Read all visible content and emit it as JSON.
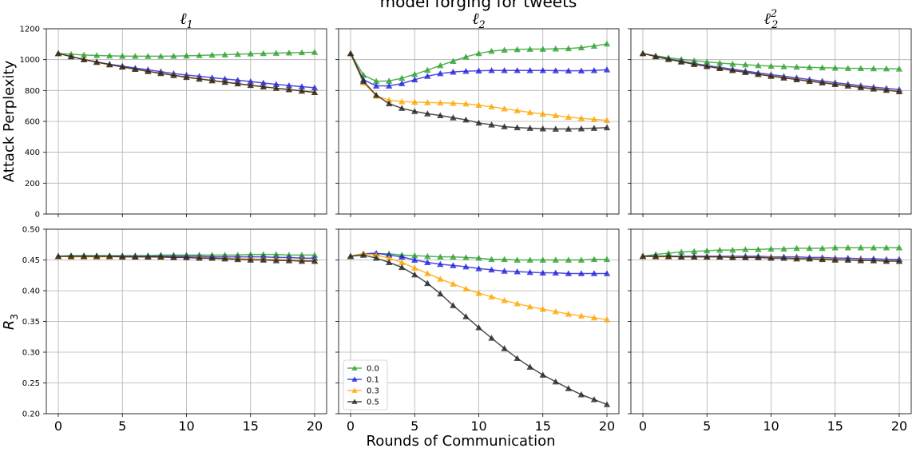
{
  "suptitle": "model forging for tweets",
  "xlabel": "Rounds of Communication",
  "ylabel_top": "Attack Perplexity",
  "ylabel_bottom": "R",
  "ylabel_bottom_sub": "3",
  "chart_data": [
    {
      "type": "line",
      "panel": "top-left",
      "title": "ℓ",
      "title_sub": "1",
      "title_sup": "",
      "xlim": [
        0,
        20
      ],
      "ylim": [
        0,
        1200
      ],
      "xticks": [
        0,
        5,
        10,
        15,
        20
      ],
      "yticks": [
        0,
        200,
        400,
        600,
        800,
        1000,
        1200
      ],
      "grid": true,
      "x": [
        0,
        1,
        2,
        3,
        4,
        5,
        6,
        7,
        8,
        9,
        10,
        11,
        12,
        13,
        14,
        15,
        16,
        17,
        18,
        19,
        20
      ],
      "series": [
        {
          "name": "0.0",
          "color": "#2ca02c",
          "values": [
            1040,
            1035,
            1030,
            1027,
            1025,
            1023,
            1022,
            1022,
            1022,
            1023,
            1025,
            1027,
            1030,
            1032,
            1035,
            1038,
            1040,
            1042,
            1044,
            1046,
            1048
          ]
        },
        {
          "name": "0.1",
          "color": "#1f1fdc",
          "values": [
            1040,
            1020,
            1000,
            985,
            970,
            958,
            945,
            935,
            922,
            910,
            900,
            892,
            883,
            875,
            867,
            858,
            849,
            840,
            832,
            825,
            818
          ]
        },
        {
          "name": "0.3",
          "color": "#ffa500",
          "values": [
            1040,
            1020,
            1000,
            982,
            967,
            952,
            938,
            925,
            912,
            900,
            888,
            877,
            866,
            855,
            845,
            835,
            825,
            815,
            806,
            797,
            788
          ]
        },
        {
          "name": "0.5",
          "color": "#222222",
          "values": [
            1040,
            1020,
            1001,
            984,
            968,
            953,
            938,
            924,
            911,
            898,
            886,
            875,
            864,
            854,
            844,
            834,
            824,
            815,
            806,
            797,
            788
          ]
        }
      ]
    },
    {
      "type": "line",
      "panel": "top-center",
      "title": "ℓ",
      "title_sub": "2",
      "title_sup": "",
      "xlim": [
        0,
        20
      ],
      "ylim": [
        0,
        1200
      ],
      "xticks": [
        0,
        5,
        10,
        15,
        20
      ],
      "yticks": [
        0,
        200,
        400,
        600,
        800,
        1000,
        1200
      ],
      "grid": true,
      "x": [
        0,
        1,
        2,
        3,
        4,
        5,
        6,
        7,
        8,
        9,
        10,
        11,
        12,
        13,
        14,
        15,
        16,
        17,
        18,
        19,
        20
      ],
      "series": [
        {
          "name": "0.0",
          "color": "#2ca02c",
          "values": [
            1040,
            900,
            860,
            862,
            880,
            905,
            932,
            962,
            990,
            1018,
            1040,
            1055,
            1062,
            1066,
            1068,
            1068,
            1070,
            1072,
            1078,
            1088,
            1102
          ]
        },
        {
          "name": "0.1",
          "color": "#1f1fdc",
          "values": [
            1040,
            870,
            830,
            830,
            845,
            870,
            893,
            910,
            920,
            925,
            928,
            930,
            930,
            930,
            930,
            930,
            929,
            928,
            928,
            930,
            935
          ]
        },
        {
          "name": "0.3",
          "color": "#ffa500",
          "values": [
            1040,
            850,
            765,
            738,
            728,
            725,
            722,
            720,
            718,
            714,
            705,
            695,
            682,
            670,
            658,
            648,
            638,
            628,
            620,
            613,
            607
          ]
        },
        {
          "name": "0.5",
          "color": "#222222",
          "values": [
            1040,
            860,
            770,
            715,
            685,
            665,
            650,
            638,
            624,
            610,
            590,
            578,
            566,
            560,
            556,
            553,
            551,
            551,
            553,
            556,
            560
          ]
        }
      ]
    },
    {
      "type": "line",
      "panel": "top-right",
      "title": "ℓ",
      "title_sub": "2",
      "title_sup": "2",
      "xlim": [
        0,
        20
      ],
      "ylim": [
        0,
        1200
      ],
      "xticks": [
        0,
        5,
        10,
        15,
        20
      ],
      "yticks": [
        0,
        200,
        400,
        600,
        800,
        1000,
        1200
      ],
      "grid": true,
      "x": [
        0,
        1,
        2,
        3,
        4,
        5,
        6,
        7,
        8,
        9,
        10,
        11,
        12,
        13,
        14,
        15,
        16,
        17,
        18,
        19,
        20
      ],
      "series": [
        {
          "name": "0.0",
          "color": "#2ca02c",
          "values": [
            1040,
            1025,
            1012,
            1002,
            993,
            985,
            978,
            972,
            967,
            962,
            958,
            955,
            952,
            950,
            948,
            946,
            944,
            943,
            942,
            941,
            940
          ]
        },
        {
          "name": "0.1",
          "color": "#1f1fdc",
          "values": [
            1040,
            1022,
            1005,
            990,
            975,
            962,
            950,
            938,
            926,
            914,
            903,
            892,
            882,
            871,
            861,
            851,
            841,
            831,
            822,
            814,
            806
          ]
        },
        {
          "name": "0.3",
          "color": "#ffa500",
          "values": [
            1040,
            1020,
            1002,
            986,
            971,
            957,
            944,
            931,
            918,
            906,
            895,
            884,
            873,
            862,
            852,
            842,
            832,
            822,
            813,
            804,
            795
          ]
        },
        {
          "name": "0.5",
          "color": "#222222",
          "values": [
            1040,
            1020,
            1002,
            986,
            970,
            956,
            943,
            930,
            918,
            905,
            893,
            882,
            871,
            860,
            850,
            840,
            830,
            820,
            811,
            802,
            793
          ]
        }
      ]
    },
    {
      "type": "line",
      "panel": "bottom-left",
      "title": "",
      "xlim": [
        0,
        20
      ],
      "ylim": [
        0.2,
        0.5
      ],
      "xticks": [
        0,
        5,
        10,
        15,
        20
      ],
      "yticks": [
        0.2,
        0.25,
        0.3,
        0.35,
        0.4,
        0.45,
        0.5
      ],
      "grid": true,
      "x": [
        0,
        1,
        2,
        3,
        4,
        5,
        6,
        7,
        8,
        9,
        10,
        11,
        12,
        13,
        14,
        15,
        16,
        17,
        18,
        19,
        20
      ],
      "series": [
        {
          "name": "0.0",
          "color": "#2ca02c",
          "values": [
            0.456,
            0.457,
            0.457,
            0.457,
            0.457,
            0.457,
            0.457,
            0.457,
            0.458,
            0.458,
            0.458,
            0.458,
            0.458,
            0.458,
            0.458,
            0.459,
            0.459,
            0.459,
            0.458,
            0.458,
            0.458
          ]
        },
        {
          "name": "0.1",
          "color": "#1f1fdc",
          "values": [
            0.456,
            0.456,
            0.456,
            0.456,
            0.456,
            0.456,
            0.456,
            0.456,
            0.456,
            0.456,
            0.456,
            0.456,
            0.455,
            0.455,
            0.455,
            0.455,
            0.455,
            0.454,
            0.454,
            0.453,
            0.453
          ]
        },
        {
          "name": "0.3",
          "color": "#ffa500",
          "values": [
            0.456,
            0.455,
            0.455,
            0.455,
            0.455,
            0.455,
            0.455,
            0.455,
            0.454,
            0.454,
            0.454,
            0.454,
            0.453,
            0.453,
            0.452,
            0.452,
            0.451,
            0.451,
            0.45,
            0.45,
            0.449
          ]
        },
        {
          "name": "0.5",
          "color": "#222222",
          "values": [
            0.456,
            0.456,
            0.456,
            0.456,
            0.456,
            0.455,
            0.455,
            0.455,
            0.455,
            0.454,
            0.454,
            0.453,
            0.453,
            0.452,
            0.451,
            0.45,
            0.45,
            0.449,
            0.449,
            0.448,
            0.448
          ]
        }
      ]
    },
    {
      "type": "line",
      "panel": "bottom-center",
      "title": "",
      "xlim": [
        0,
        20
      ],
      "ylim": [
        0.2,
        0.5
      ],
      "xticks": [
        0,
        5,
        10,
        15,
        20
      ],
      "yticks": [
        0.2,
        0.25,
        0.3,
        0.35,
        0.4,
        0.45,
        0.5
      ],
      "grid": true,
      "legend": "bottom-left",
      "x": [
        0,
        1,
        2,
        3,
        4,
        5,
        6,
        7,
        8,
        9,
        10,
        11,
        12,
        13,
        14,
        15,
        16,
        17,
        18,
        19,
        20
      ],
      "series": [
        {
          "name": "0.0",
          "color": "#2ca02c",
          "values": [
            0.456,
            0.46,
            0.46,
            0.46,
            0.458,
            0.457,
            0.456,
            0.455,
            0.455,
            0.454,
            0.453,
            0.451,
            0.451,
            0.45,
            0.45,
            0.45,
            0.45,
            0.45,
            0.45,
            0.451,
            0.451
          ]
        },
        {
          "name": "0.1",
          "color": "#1f1fdc",
          "values": [
            0.456,
            0.46,
            0.461,
            0.458,
            0.455,
            0.45,
            0.446,
            0.443,
            0.441,
            0.439,
            0.436,
            0.434,
            0.432,
            0.431,
            0.43,
            0.429,
            0.429,
            0.428,
            0.428,
            0.428,
            0.428
          ]
        },
        {
          "name": "0.3",
          "color": "#ffa500",
          "values": [
            0.456,
            0.46,
            0.458,
            0.453,
            0.446,
            0.437,
            0.428,
            0.419,
            0.411,
            0.403,
            0.396,
            0.39,
            0.384,
            0.379,
            0.374,
            0.37,
            0.366,
            0.362,
            0.359,
            0.356,
            0.353
          ]
        },
        {
          "name": "0.5",
          "color": "#222222",
          "values": [
            0.456,
            0.458,
            0.453,
            0.446,
            0.438,
            0.426,
            0.412,
            0.395,
            0.376,
            0.358,
            0.34,
            0.323,
            0.306,
            0.29,
            0.276,
            0.263,
            0.252,
            0.241,
            0.231,
            0.223,
            0.215
          ]
        }
      ]
    },
    {
      "type": "line",
      "panel": "bottom-right",
      "title": "",
      "xlim": [
        0,
        20
      ],
      "ylim": [
        0.2,
        0.5
      ],
      "xticks": [
        0,
        5,
        10,
        15,
        20
      ],
      "yticks": [
        0.2,
        0.25,
        0.3,
        0.35,
        0.4,
        0.45,
        0.5
      ],
      "grid": true,
      "x": [
        0,
        1,
        2,
        3,
        4,
        5,
        6,
        7,
        8,
        9,
        10,
        11,
        12,
        13,
        14,
        15,
        16,
        17,
        18,
        19,
        20
      ],
      "series": [
        {
          "name": "0.0",
          "color": "#2ca02c",
          "values": [
            0.456,
            0.459,
            0.461,
            0.463,
            0.464,
            0.465,
            0.466,
            0.466,
            0.467,
            0.467,
            0.468,
            0.468,
            0.469,
            0.469,
            0.469,
            0.47,
            0.47,
            0.47,
            0.47,
            0.47,
            0.47
          ]
        },
        {
          "name": "0.1",
          "color": "#1f1fdc",
          "values": [
            0.456,
            0.456,
            0.456,
            0.456,
            0.456,
            0.456,
            0.456,
            0.456,
            0.456,
            0.456,
            0.455,
            0.455,
            0.455,
            0.454,
            0.454,
            0.453,
            0.453,
            0.452,
            0.452,
            0.451,
            0.451
          ]
        },
        {
          "name": "0.3",
          "color": "#ffa500",
          "values": [
            0.456,
            0.455,
            0.455,
            0.455,
            0.455,
            0.455,
            0.455,
            0.455,
            0.454,
            0.454,
            0.454,
            0.453,
            0.453,
            0.452,
            0.452,
            0.451,
            0.45,
            0.45,
            0.449,
            0.449,
            0.448
          ]
        },
        {
          "name": "0.5",
          "color": "#222222",
          "values": [
            0.456,
            0.456,
            0.456,
            0.455,
            0.455,
            0.455,
            0.455,
            0.454,
            0.454,
            0.454,
            0.453,
            0.453,
            0.452,
            0.452,
            0.451,
            0.45,
            0.45,
            0.449,
            0.449,
            0.448,
            0.448
          ]
        }
      ]
    }
  ]
}
